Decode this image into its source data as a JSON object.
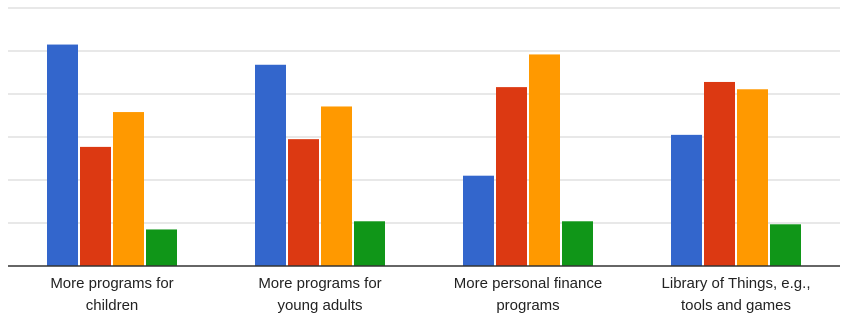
{
  "chart_data": {
    "type": "bar",
    "title": "",
    "xlabel": "",
    "ylabel": "",
    "ylim": [
      0,
      6
    ],
    "grid": true,
    "legend": "none",
    "categories": [
      [
        "More programs for",
        "children"
      ],
      [
        "More programs for",
        "young adults"
      ],
      [
        "More personal finance",
        "programs"
      ],
      [
        "Library of Things, e.g.,",
        "tools and games"
      ]
    ],
    "series": [
      {
        "color": "#3366cc",
        "values": [
          5.15,
          4.68,
          2.1,
          3.05
        ]
      },
      {
        "color": "#dc3912",
        "values": [
          2.77,
          2.95,
          4.16,
          4.28
        ]
      },
      {
        "color": "#ff9900",
        "values": [
          3.58,
          3.71,
          4.92,
          4.11
        ]
      },
      {
        "color": "#109618",
        "values": [
          0.85,
          1.04,
          1.04,
          0.97
        ]
      }
    ]
  }
}
